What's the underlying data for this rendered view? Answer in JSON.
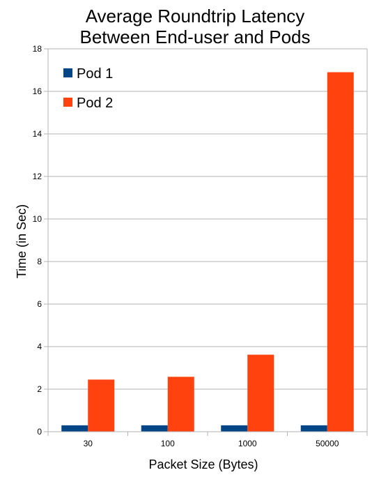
{
  "chart_data": {
    "type": "bar",
    "title": [
      "Average Roundtrip Latency",
      "Between End-user and Pods"
    ],
    "xlabel": "Packet Size (Bytes)",
    "ylabel": "Time (in Sec)",
    "categories": [
      "30",
      "100",
      "1000",
      "50000"
    ],
    "series": [
      {
        "name": "Pod 1",
        "color": "#004586",
        "values": [
          0.3,
          0.3,
          0.3,
          0.3
        ]
      },
      {
        "name": "Pod 2",
        "color": "#ff420e",
        "values": [
          2.45,
          2.58,
          3.62,
          16.9
        ]
      }
    ],
    "ylim": [
      0,
      18
    ],
    "yticks": [
      0,
      2,
      4,
      6,
      8,
      10,
      12,
      14,
      16,
      18
    ],
    "grid": true,
    "legend_position": "top-left"
  }
}
